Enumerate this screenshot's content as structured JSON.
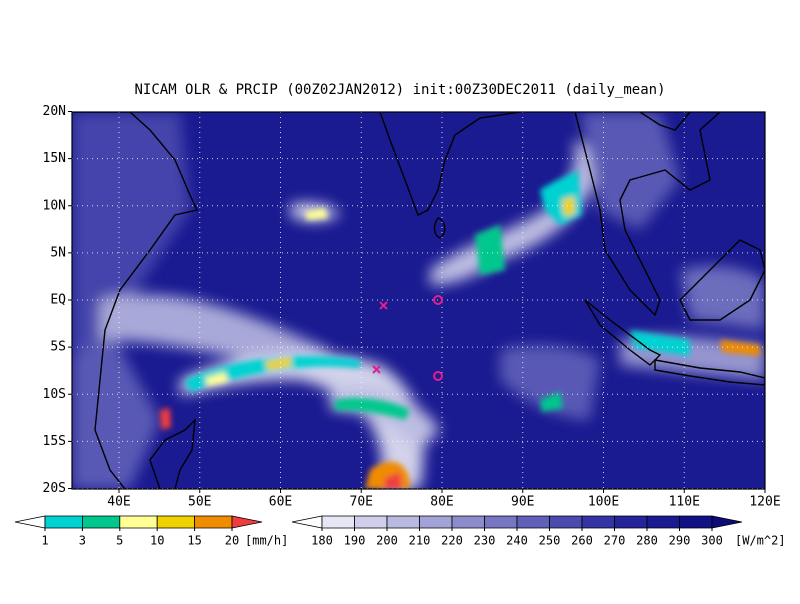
{
  "title": "NICAM OLR & PRCIP (00Z02JAN2012) init:00Z30DEC2011 (daily_mean)",
  "lat_ticks": [
    {
      "value": 20,
      "label": "20N"
    },
    {
      "value": 15,
      "label": "15N"
    },
    {
      "value": 10,
      "label": "10N"
    },
    {
      "value": 5,
      "label": "5N"
    },
    {
      "value": 0,
      "label": "EQ"
    },
    {
      "value": -5,
      "label": "5S"
    },
    {
      "value": -10,
      "label": "10S"
    },
    {
      "value": -15,
      "label": "15S"
    },
    {
      "value": -20,
      "label": "20S"
    }
  ],
  "lon_ticks": [
    {
      "value": 40,
      "label": "40E"
    },
    {
      "value": 50,
      "label": "50E"
    },
    {
      "value": 60,
      "label": "60E"
    },
    {
      "value": 70,
      "label": "70E"
    },
    {
      "value": 80,
      "label": "80E"
    },
    {
      "value": 90,
      "label": "90E"
    },
    {
      "value": 100,
      "label": "100E"
    },
    {
      "value": 110,
      "label": "110E"
    },
    {
      "value": 120,
      "label": "120E"
    }
  ],
  "precip_colorbar": {
    "levels": [
      1,
      3,
      5,
      10,
      15,
      20
    ],
    "unit": "[mm/h]",
    "colors": [
      "#ffffff",
      "#00d2d2",
      "#00c88c",
      "#ffff96",
      "#f0d200",
      "#f08c00",
      "#f03c3c"
    ]
  },
  "olr_colorbar": {
    "levels": [
      180,
      190,
      200,
      210,
      220,
      230,
      240,
      250,
      260,
      270,
      280,
      290,
      300
    ],
    "unit": "[W/m^2]",
    "colors": [
      "#ffffff",
      "#e6e6f5",
      "#cfcfeb",
      "#b9b9e1",
      "#a3a3d7",
      "#8c8ccd",
      "#7676c3",
      "#6060b9",
      "#4a4aaf",
      "#3434a5",
      "#24249b",
      "#1a1a91",
      "#121287",
      "#0c0c78"
    ]
  }
}
